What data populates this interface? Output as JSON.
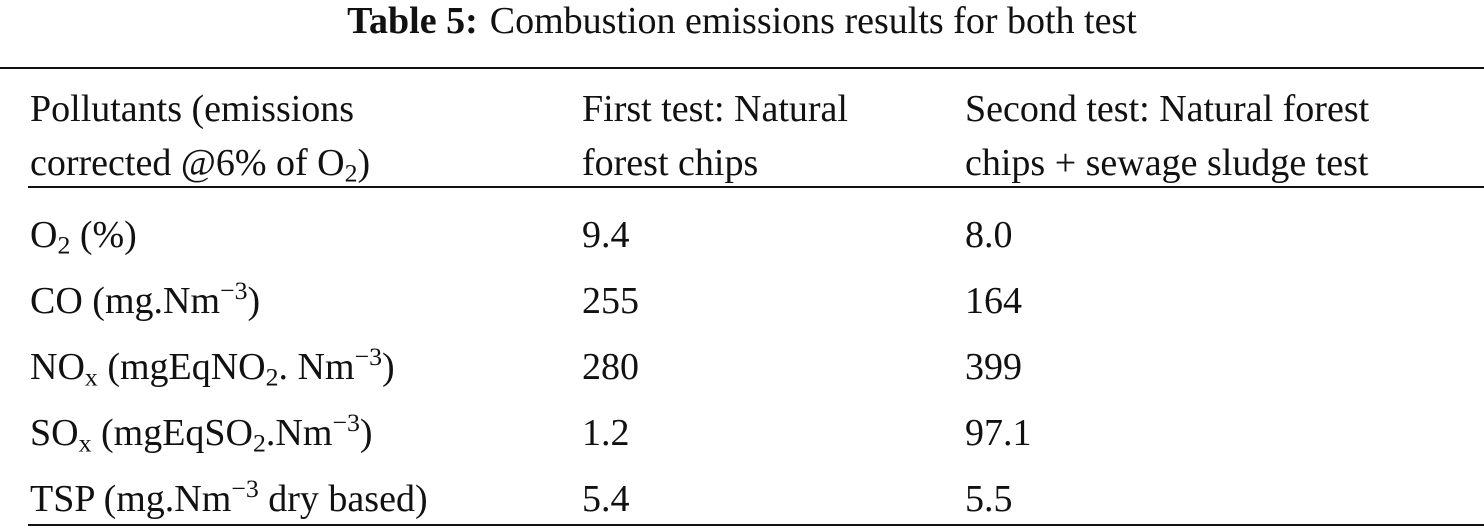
{
  "caption": {
    "label": "Table 5:",
    "text": "Combustion emissions results for both test"
  },
  "table": {
    "header": [
      [
        [
          "Pollutants (emissions"
        ],
        [
          "corrected @6% of O",
          {
            "sub": "2"
          },
          ")"
        ]
      ],
      [
        [
          "First test: Natural"
        ],
        [
          "forest chips"
        ]
      ],
      [
        [
          "Second test: Natural forest"
        ],
        [
          "chips + sewage sludge test"
        ]
      ]
    ],
    "rows": [
      [
        [
          "O",
          {
            "sub": "2"
          },
          " (%)"
        ],
        "9.4",
        "8.0"
      ],
      [
        [
          "CO (mg.Nm",
          {
            "sup": "−3"
          },
          ")"
        ],
        "255",
        "164"
      ],
      [
        [
          "NO",
          {
            "sub": "x"
          },
          " (mgEqNO",
          {
            "sub": "2"
          },
          ". Nm",
          {
            "sup": "−3"
          },
          ")"
        ],
        "280",
        "399"
      ],
      [
        [
          "SO",
          {
            "sub": "x"
          },
          " (mgEqSO",
          {
            "sub": "2"
          },
          ".Nm",
          {
            "sup": "−3"
          },
          ")"
        ],
        "1.2",
        "97.1"
      ],
      [
        [
          "TSP (mg.Nm",
          {
            "sup": "−3"
          },
          " dry based)"
        ],
        "5.4",
        "5.5"
      ]
    ]
  }
}
